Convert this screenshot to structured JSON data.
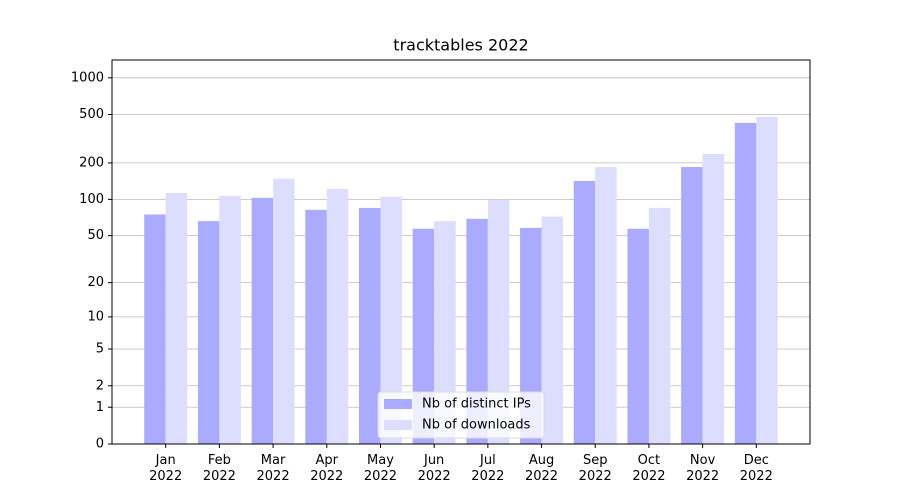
{
  "chart_data": {
    "type": "bar",
    "title": "tracktables 2022",
    "categories": [
      "Jan\n2022",
      "Feb\n2022",
      "Mar\n2022",
      "Apr\n2022",
      "May\n2022",
      "Jun\n2022",
      "Jul\n2022",
      "Aug\n2022",
      "Sep\n2022",
      "Oct\n2022",
      "Nov\n2022",
      "Dec\n2022"
    ],
    "series": [
      {
        "name": "Nb of distinct IPs",
        "color": "#aaaaff",
        "values": [
          75,
          66,
          103,
          82,
          85,
          57,
          69,
          58,
          142,
          57,
          185,
          427
        ]
      },
      {
        "name": "Nb of downloads",
        "color": "#ddddff",
        "values": [
          113,
          107,
          148,
          122,
          105,
          66,
          99,
          72,
          185,
          85,
          237,
          478
        ]
      }
    ],
    "yscale": "log1p",
    "ylim": [
      0,
      1400
    ],
    "yticks": [
      0,
      1,
      2,
      5,
      10,
      20,
      50,
      100,
      200,
      500,
      1000
    ],
    "grid": true,
    "legend": "lower center"
  }
}
